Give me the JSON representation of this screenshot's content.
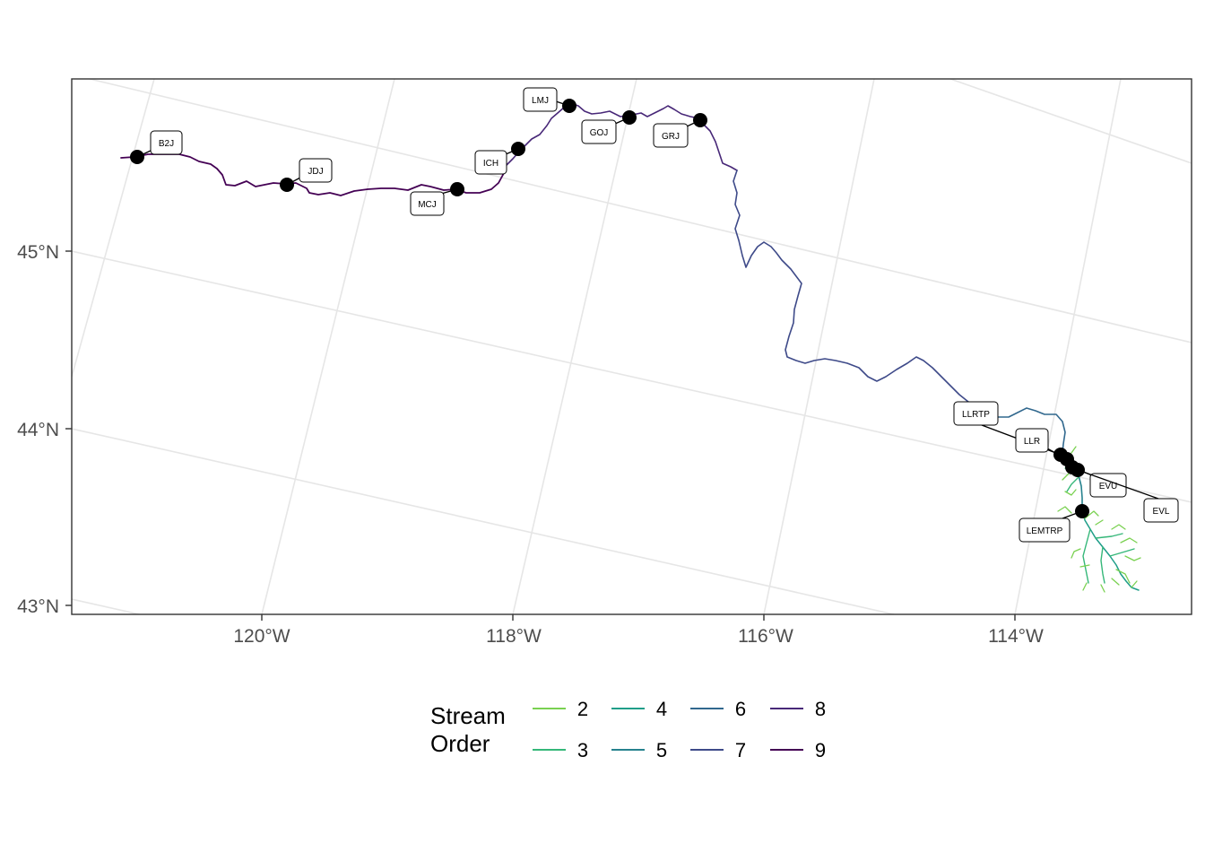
{
  "axes": {
    "x_ticks": [
      {
        "value": -120,
        "label": "120°W"
      },
      {
        "value": -118,
        "label": "118°W"
      },
      {
        "value": -116,
        "label": "116°W"
      },
      {
        "value": -114,
        "label": "114°W"
      }
    ],
    "y_ticks": [
      {
        "value": 45,
        "label": "45°N"
      },
      {
        "value": 44,
        "label": "44°N"
      },
      {
        "value": 43,
        "label": "43°N"
      }
    ]
  },
  "legend": {
    "title_line1": "Stream",
    "title_line2": "Order",
    "items": [
      {
        "label": "2",
        "color": "#7AD151"
      },
      {
        "label": "3",
        "color": "#35B779"
      },
      {
        "label": "4",
        "color": "#1F9E89"
      },
      {
        "label": "5",
        "color": "#26828E"
      },
      {
        "label": "6",
        "color": "#31688E"
      },
      {
        "label": "7",
        "color": "#3E4A89"
      },
      {
        "label": "8",
        "color": "#482878"
      },
      {
        "label": "9",
        "color": "#440154"
      }
    ]
  },
  "sites": [
    {
      "label": "B2J"
    },
    {
      "label": "JDJ"
    },
    {
      "label": "MCJ"
    },
    {
      "label": "ICH"
    },
    {
      "label": "LMJ"
    },
    {
      "label": "GOJ"
    },
    {
      "label": "GRJ"
    },
    {
      "label": "LLRTP"
    },
    {
      "label": "LLR"
    },
    {
      "label": "EVU"
    },
    {
      "label": "EVL"
    },
    {
      "label": "LEMTRP"
    }
  ]
}
